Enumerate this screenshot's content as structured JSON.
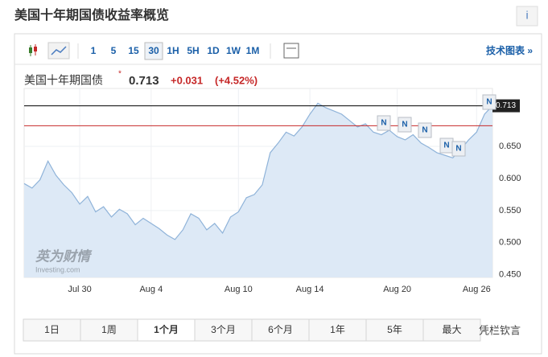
{
  "header": {
    "title": "美国十年期国债收益率概览",
    "info": "i"
  },
  "toolbar": {
    "intervals": [
      "1",
      "5",
      "15",
      "30",
      "1H",
      "5H",
      "1D",
      "1W",
      "1M"
    ],
    "selected": "30",
    "link": "技术图表 »"
  },
  "quote": {
    "name": "美国十年期国债",
    "price": "0.713",
    "change": "+0.031",
    "change_pct": "(+4.52%)"
  },
  "chart_data": {
    "type": "area",
    "color": "#8fb3d9",
    "fill": "#dde9f6",
    "categories": [
      null,
      null,
      null,
      null,
      null,
      null,
      null,
      "Jul 30",
      null,
      null,
      null,
      null,
      null,
      null,
      null,
      null,
      "Aug 4",
      null,
      null,
      null,
      null,
      null,
      null,
      null,
      null,
      null,
      null,
      "Aug 10",
      null,
      null,
      null,
      null,
      null,
      null,
      null,
      null,
      "Aug 14",
      null,
      null,
      null,
      null,
      null,
      null,
      null,
      null,
      null,
      null,
      "Aug 20",
      null,
      null,
      null,
      null,
      null,
      null,
      null,
      null,
      null,
      "Aug 26",
      null,
      null
    ],
    "values": [
      0.592,
      0.585,
      0.598,
      0.627,
      0.605,
      0.59,
      0.578,
      0.56,
      0.572,
      0.548,
      0.556,
      0.54,
      0.552,
      0.545,
      0.528,
      0.538,
      0.53,
      0.522,
      0.512,
      0.505,
      0.52,
      0.545,
      0.538,
      0.52,
      0.53,
      0.515,
      0.54,
      0.548,
      0.57,
      0.575,
      0.59,
      0.64,
      0.655,
      0.672,
      0.666,
      0.68,
      0.7,
      0.717,
      0.71,
      0.705,
      0.7,
      0.69,
      0.68,
      0.685,
      0.672,
      0.668,
      0.675,
      0.665,
      0.66,
      0.668,
      0.655,
      0.648,
      0.64,
      0.636,
      0.632,
      0.645,
      0.66,
      0.672,
      0.7,
      0.713
    ],
    "ylim": [
      0.446,
      0.74
    ],
    "yticks": [
      {
        "value": 0.65,
        "label": "0.650"
      },
      {
        "value": 0.6,
        "label": "0.600"
      },
      {
        "value": 0.55,
        "label": "0.550"
      },
      {
        "value": 0.5,
        "label": "0.500"
      },
      {
        "value": 0.45,
        "label": "0.450"
      }
    ],
    "reference_lines": [
      {
        "value": 0.713,
        "color": "#000000",
        "label": "0.713"
      },
      {
        "value": 0.682,
        "color": "#c62828"
      }
    ],
    "annotations": [
      "N",
      "N",
      "N",
      "N",
      "N",
      "N"
    ],
    "watermark": "英为财情",
    "watermark_sub": "Investing.com"
  },
  "periods": {
    "tabs": [
      "1日",
      "1周",
      "1个月",
      "3个月",
      "6个月",
      "1年",
      "5年",
      "最大"
    ],
    "selected": "1个月"
  },
  "overlay": "凭栏钦言"
}
